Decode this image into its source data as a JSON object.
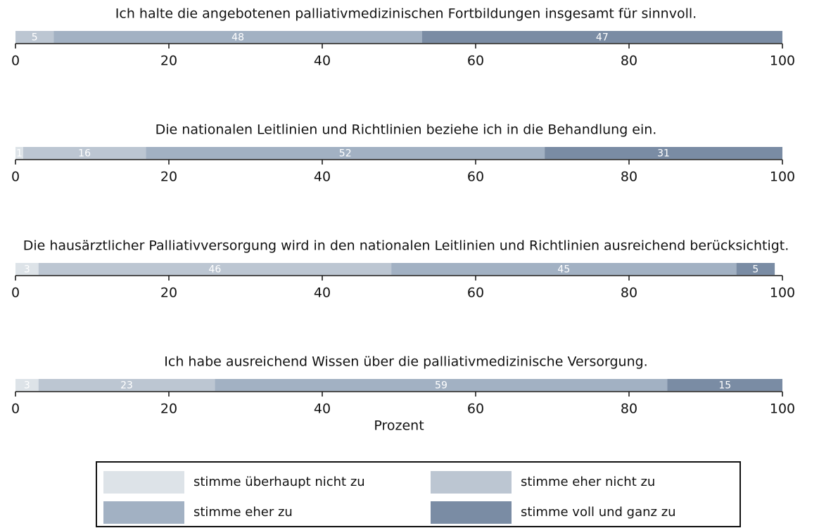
{
  "chart_data": {
    "type": "stacked-bar-horizontal",
    "categories": [
      "Ich halte die angebotenen palliativmedizinischen Fortbildungen insgesamt für sinnvoll.",
      "Die nationalen Leitlinien und Richtlinien beziehe ich in die Behandlung ein.",
      "Die hausärztlicher Palliativversorgung wird in den nationalen Leitlinien und Richtlinien ausreichend berücksichtigt.",
      "Ich habe ausreichend Wissen über die palliativmedizinische Versorgung."
    ],
    "series": [
      {
        "name": "stimme überhaupt nicht zu",
        "color": "#dde3e8",
        "values": [
          0,
          1,
          3,
          3
        ]
      },
      {
        "name": "stimme eher nicht zu",
        "color": "#bcc6d2",
        "values": [
          5,
          16,
          46,
          23
        ]
      },
      {
        "name": "stimme eher zu",
        "color": "#a2b1c3",
        "values": [
          48,
          52,
          45,
          59
        ]
      },
      {
        "name": "stimme voll und ganz zu",
        "color": "#7a8ca4",
        "values": [
          47,
          31,
          5,
          15
        ]
      }
    ],
    "xlabel": "Prozent",
    "xlim": [
      0,
      100
    ],
    "xticks": [
      0,
      20,
      40,
      60,
      80,
      100
    ]
  }
}
